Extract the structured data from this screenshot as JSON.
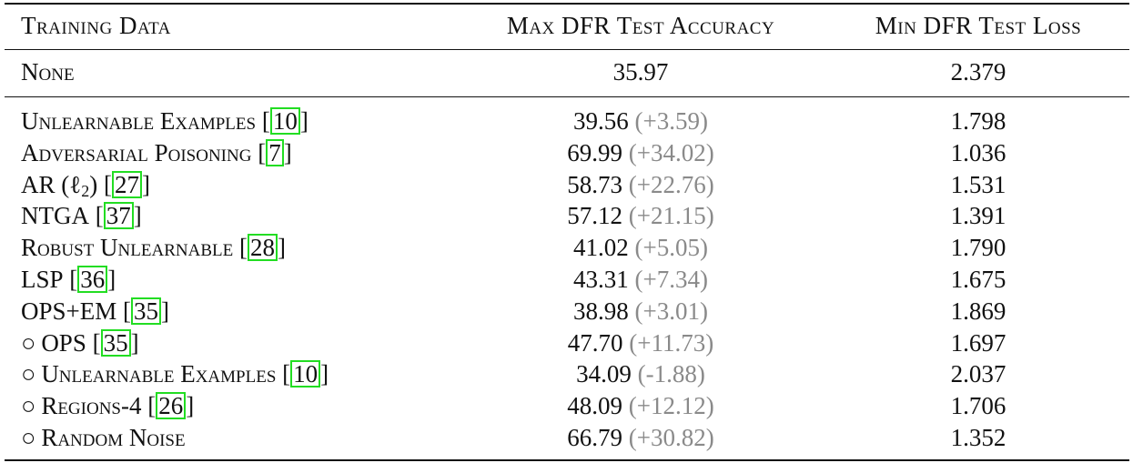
{
  "header": {
    "col1": "Training Data",
    "col2": "Max DFR Test Accuracy",
    "col3": "Min DFR Test Loss"
  },
  "baseline": {
    "name": "None",
    "acc": "35.97",
    "loss": "2.379"
  },
  "rows": [
    {
      "marker": "",
      "name": "Unlearnable Examples",
      "cite": "10",
      "acc": "39.56",
      "delta": "(+3.59)",
      "loss": "1.798"
    },
    {
      "marker": "",
      "name": "Adversarial Poisoning",
      "cite": "7",
      "acc": "69.99",
      "delta": "(+34.02)",
      "loss": "1.036"
    },
    {
      "marker": "",
      "name": "AR (ℓ",
      "name_sub": "2",
      "name_suffix": ")",
      "cite": "27",
      "acc": "58.73",
      "delta": "(+22.76)",
      "loss": "1.531"
    },
    {
      "marker": "",
      "name": "NTGA",
      "cite": "37",
      "acc": "57.12",
      "delta": "(+21.15)",
      "loss": "1.391"
    },
    {
      "marker": "",
      "name": "Robust Unlearnable",
      "cite": "28",
      "acc": "41.02",
      "delta": "(+5.05)",
      "loss": "1.790"
    },
    {
      "marker": "",
      "name": "LSP",
      "cite": "36",
      "acc": "43.31",
      "delta": "(+7.34)",
      "loss": "1.675"
    },
    {
      "marker": "",
      "name": "OPS+EM",
      "cite": "35",
      "acc": "38.98",
      "delta": "(+3.01)",
      "loss": "1.869"
    },
    {
      "marker": "○",
      "name": "OPS",
      "cite": "35",
      "acc": "47.70",
      "delta": "(+11.73)",
      "loss": "1.697"
    },
    {
      "marker": "○",
      "name": "Unlearnable Examples",
      "cite": "10",
      "acc": "34.09",
      "delta": "(-1.88)",
      "loss": "2.037"
    },
    {
      "marker": "○",
      "name": "Regions-4",
      "cite": "26",
      "acc": "48.09",
      "delta": "(+12.12)",
      "loss": "1.706"
    },
    {
      "marker": "○",
      "name": "Random Noise",
      "cite": "",
      "acc": "66.79",
      "delta": "(+30.82)",
      "loss": "1.352"
    }
  ]
}
